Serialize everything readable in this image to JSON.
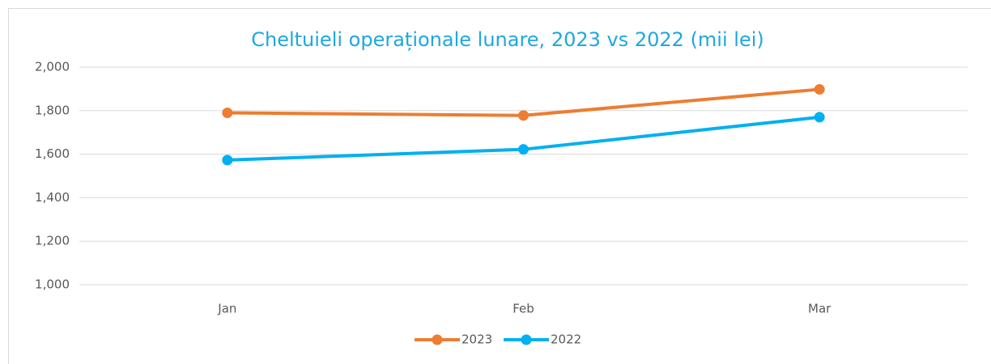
{
  "chart_data": {
    "type": "line",
    "title": "Cheltuieli operaționale lunare, 2023 vs 2022 (mii lei)",
    "categories": [
      "Jan",
      "Feb",
      "Mar"
    ],
    "series": [
      {
        "name": "2023",
        "color": "#ed7d31",
        "values": [
          1790,
          1778,
          1898
        ]
      },
      {
        "name": "2022",
        "color": "#00b0f0",
        "values": [
          1573,
          1622,
          1770
        ]
      }
    ],
    "ylim": [
      1000,
      2000
    ],
    "yticks": [
      {
        "value": 1000,
        "label": "1,000"
      },
      {
        "value": 1200,
        "label": "1,200"
      },
      {
        "value": 1400,
        "label": "1,400"
      },
      {
        "value": 1600,
        "label": "1,600"
      },
      {
        "value": 1800,
        "label": "1,800"
      },
      {
        "value": 2000,
        "label": "2,000"
      }
    ],
    "grid": true,
    "legend": "bottom"
  }
}
